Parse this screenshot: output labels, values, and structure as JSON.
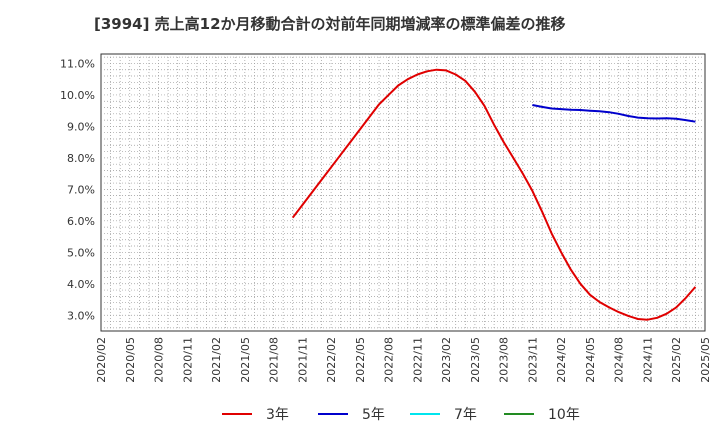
{
  "chart_data": {
    "type": "line",
    "title": "[3994]  売上高12か月移動合計の対前年同期増減率の標準偏差の推移",
    "xlabel": "",
    "ylabel": "",
    "ylim": [
      2.5,
      11.3
    ],
    "y_ticks": [
      3.0,
      4.0,
      5.0,
      6.0,
      7.0,
      8.0,
      9.0,
      10.0,
      11.0
    ],
    "y_tick_labels": [
      "3.0%",
      "4.0%",
      "5.0%",
      "6.0%",
      "7.0%",
      "8.0%",
      "9.0%",
      "10.0%",
      "11.0%"
    ],
    "x_ticks": [
      "2020/02",
      "2020/05",
      "2020/08",
      "2020/11",
      "2021/02",
      "2021/05",
      "2021/08",
      "2021/11",
      "2022/02",
      "2022/05",
      "2022/08",
      "2022/11",
      "2023/02",
      "2023/05",
      "2023/08",
      "2023/11",
      "2024/02",
      "2024/05",
      "2024/08",
      "2024/11",
      "2025/02",
      "2025/05"
    ],
    "grid": true,
    "legend_position": "bottom",
    "series": [
      {
        "name": "3年",
        "color": "#e00000",
        "points": [
          [
            "2021/10",
            6.1
          ],
          [
            "2021/11",
            6.5
          ],
          [
            "2021/12",
            6.9
          ],
          [
            "2022/01",
            7.3
          ],
          [
            "2022/02",
            7.7
          ],
          [
            "2022/03",
            8.1
          ],
          [
            "2022/04",
            8.5
          ],
          [
            "2022/05",
            8.9
          ],
          [
            "2022/06",
            9.3
          ],
          [
            "2022/07",
            9.7
          ],
          [
            "2022/08",
            10.0
          ],
          [
            "2022/09",
            10.3
          ],
          [
            "2022/10",
            10.5
          ],
          [
            "2022/11",
            10.65
          ],
          [
            "2022/12",
            10.75
          ],
          [
            "2023/01",
            10.8
          ],
          [
            "2023/02",
            10.78
          ],
          [
            "2023/03",
            10.65
          ],
          [
            "2023/04",
            10.45
          ],
          [
            "2023/05",
            10.1
          ],
          [
            "2023/06",
            9.65
          ],
          [
            "2023/07",
            9.05
          ],
          [
            "2023/08",
            8.5
          ],
          [
            "2023/09",
            8.0
          ],
          [
            "2023/10",
            7.5
          ],
          [
            "2023/11",
            6.95
          ],
          [
            "2023/12",
            6.3
          ],
          [
            "2024/01",
            5.6
          ],
          [
            "2024/02",
            5.0
          ],
          [
            "2024/03",
            4.45
          ],
          [
            "2024/04",
            4.0
          ],
          [
            "2024/05",
            3.65
          ],
          [
            "2024/06",
            3.42
          ],
          [
            "2024/07",
            3.25
          ],
          [
            "2024/08",
            3.1
          ],
          [
            "2024/09",
            2.98
          ],
          [
            "2024/10",
            2.88
          ],
          [
            "2024/11",
            2.86
          ],
          [
            "2024/12",
            2.92
          ],
          [
            "2025/01",
            3.05
          ],
          [
            "2025/02",
            3.25
          ],
          [
            "2025/03",
            3.55
          ],
          [
            "2025/04",
            3.9
          ]
        ]
      },
      {
        "name": "5年",
        "color": "#0000cc",
        "points": [
          [
            "2023/11",
            9.68
          ],
          [
            "2023/12",
            9.62
          ],
          [
            "2024/01",
            9.57
          ],
          [
            "2024/02",
            9.55
          ],
          [
            "2024/03",
            9.53
          ],
          [
            "2024/04",
            9.52
          ],
          [
            "2024/05",
            9.5
          ],
          [
            "2024/06",
            9.48
          ],
          [
            "2024/07",
            9.45
          ],
          [
            "2024/08",
            9.4
          ],
          [
            "2024/09",
            9.33
          ],
          [
            "2024/10",
            9.28
          ],
          [
            "2024/11",
            9.26
          ],
          [
            "2024/12",
            9.25
          ],
          [
            "2025/01",
            9.26
          ],
          [
            "2025/02",
            9.24
          ],
          [
            "2025/03",
            9.2
          ],
          [
            "2025/04",
            9.15
          ]
        ]
      },
      {
        "name": "7年",
        "color": "#00e5ee",
        "points": []
      },
      {
        "name": "10年",
        "color": "#228b22",
        "points": []
      }
    ]
  }
}
